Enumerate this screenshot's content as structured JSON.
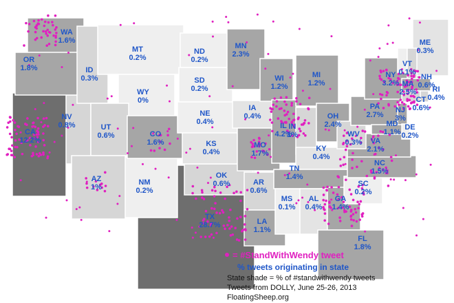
{
  "map": {
    "states": [
      {
        "abbr": "TX",
        "pct": "28.7%",
        "shade": "#6e6e6e"
      },
      {
        "abbr": "NM",
        "pct": "0.2%",
        "shade": "#efefef"
      },
      {
        "abbr": "OK",
        "pct": "0.6%",
        "shade": "#d6d6d6"
      },
      {
        "abbr": "NV",
        "pct": "0.8%",
        "shade": "#d6d6d6"
      },
      {
        "abbr": "CA",
        "pct": "12.2%",
        "shade": "#6e6e6e"
      },
      {
        "abbr": "WA",
        "pct": "1.6%",
        "shade": "#a6a6a6"
      },
      {
        "abbr": "OR",
        "pct": "1.8%",
        "shade": "#a6a6a6"
      },
      {
        "abbr": "ID",
        "pct": "0.3%",
        "shade": "#d6d6d6"
      },
      {
        "abbr": "MT",
        "pct": "0.2%",
        "shade": "#efefef"
      },
      {
        "abbr": "WY",
        "pct": "0%",
        "shade": "#efefef"
      },
      {
        "abbr": "UT",
        "pct": "0.6%",
        "shade": "#d6d6d6"
      },
      {
        "abbr": "AZ",
        "pct": "1%",
        "shade": "#d6d6d6"
      },
      {
        "abbr": "CO",
        "pct": "1.6%",
        "shade": "#a6a6a6"
      },
      {
        "abbr": "ND",
        "pct": "0.2%",
        "shade": "#efefef"
      },
      {
        "abbr": "SD",
        "pct": "0.2%",
        "shade": "#efefef"
      },
      {
        "abbr": "NE",
        "pct": "0.4%",
        "shade": "#efefef"
      },
      {
        "abbr": "KS",
        "pct": "0.4%",
        "shade": "#e4e4e4"
      },
      {
        "abbr": "MN",
        "pct": "2.3%",
        "shade": "#a6a6a6"
      },
      {
        "abbr": "IA",
        "pct": "0.4%",
        "shade": "#e4e4e4"
      },
      {
        "abbr": "MO",
        "pct": "1.7%",
        "shade": "#a6a6a6"
      },
      {
        "abbr": "AR",
        "pct": "0.6%",
        "shade": "#d6d6d6"
      },
      {
        "abbr": "LA",
        "pct": "1.1%",
        "shade": "#a6a6a6"
      },
      {
        "abbr": "WI",
        "pct": "1.2%",
        "shade": "#a6a6a6"
      },
      {
        "abbr": "IL",
        "pct": "4.2%",
        "shade": "#a6a6a6"
      },
      {
        "abbr": "MI",
        "pct": "1.2%",
        "shade": "#a6a6a6"
      },
      {
        "abbr": "IN",
        "pct": "1%",
        "shade": "#d6d6d6"
      },
      {
        "abbr": "OH",
        "pct": "2.4%",
        "shade": "#a6a6a6"
      },
      {
        "abbr": "KY",
        "pct": "0.4%",
        "shade": "#e4e4e4"
      },
      {
        "abbr": "TN",
        "pct": "1.4%",
        "shade": "#a6a6a6"
      },
      {
        "abbr": "MS",
        "pct": "0.1%",
        "shade": "#efefef"
      },
      {
        "abbr": "AL",
        "pct": "0.4%",
        "shade": "#e4e4e4"
      },
      {
        "abbr": "GA",
        "pct": "1.4%",
        "shade": "#a6a6a6"
      },
      {
        "abbr": "FL",
        "pct": "1.8%",
        "shade": "#a6a6a6"
      },
      {
        "abbr": "SC",
        "pct": "0.2%",
        "shade": "#efefef"
      },
      {
        "abbr": "NC",
        "pct": "1.5%",
        "shade": "#a6a6a6"
      },
      {
        "abbr": "VA",
        "pct": "2.1%",
        "shade": "#a6a6a6"
      },
      {
        "abbr": "WV",
        "pct": "0.3%",
        "shade": "#d6d6d6"
      },
      {
        "abbr": "PA",
        "pct": "2.7%",
        "shade": "#a6a6a6"
      },
      {
        "abbr": "NY",
        "pct": "3.2%",
        "shade": "#a6a6a6"
      },
      {
        "abbr": "NJ",
        "pct": "3%",
        "shade": "#a6a6a6"
      },
      {
        "abbr": "DE",
        "pct": "0.2%",
        "shade": "#efefef"
      },
      {
        "abbr": "MD",
        "pct": "1.1%",
        "shade": "#a6a6a6"
      },
      {
        "abbr": "ME",
        "pct": "0.3%",
        "shade": "#e4e4e4"
      },
      {
        "abbr": "VT",
        "pct": "0.1%",
        "shade": "#efefef"
      },
      {
        "abbr": "NH",
        "pct": "0.6%",
        "shade": "#d6d6d6"
      },
      {
        "abbr": "MA",
        "pct": "2.5%",
        "shade": "#a6a6a6"
      },
      {
        "abbr": "CT",
        "pct": "0.6%",
        "shade": "#d6d6d6"
      },
      {
        "abbr": "RI",
        "pct": "0.4%",
        "shade": "#d6d6d6"
      }
    ],
    "dot_color": "#e020c0",
    "label_color": "#1f56c8",
    "legend": {
      "tweet": "= #StandWithWendy tweet",
      "pct_note": "% tweets originating in state",
      "shade_note": "State shade = % of #standwithwendy tweets",
      "source": "Tweets from DOLLY, June 25-26, 2013",
      "credit": "FloatingSheep.org"
    }
  }
}
